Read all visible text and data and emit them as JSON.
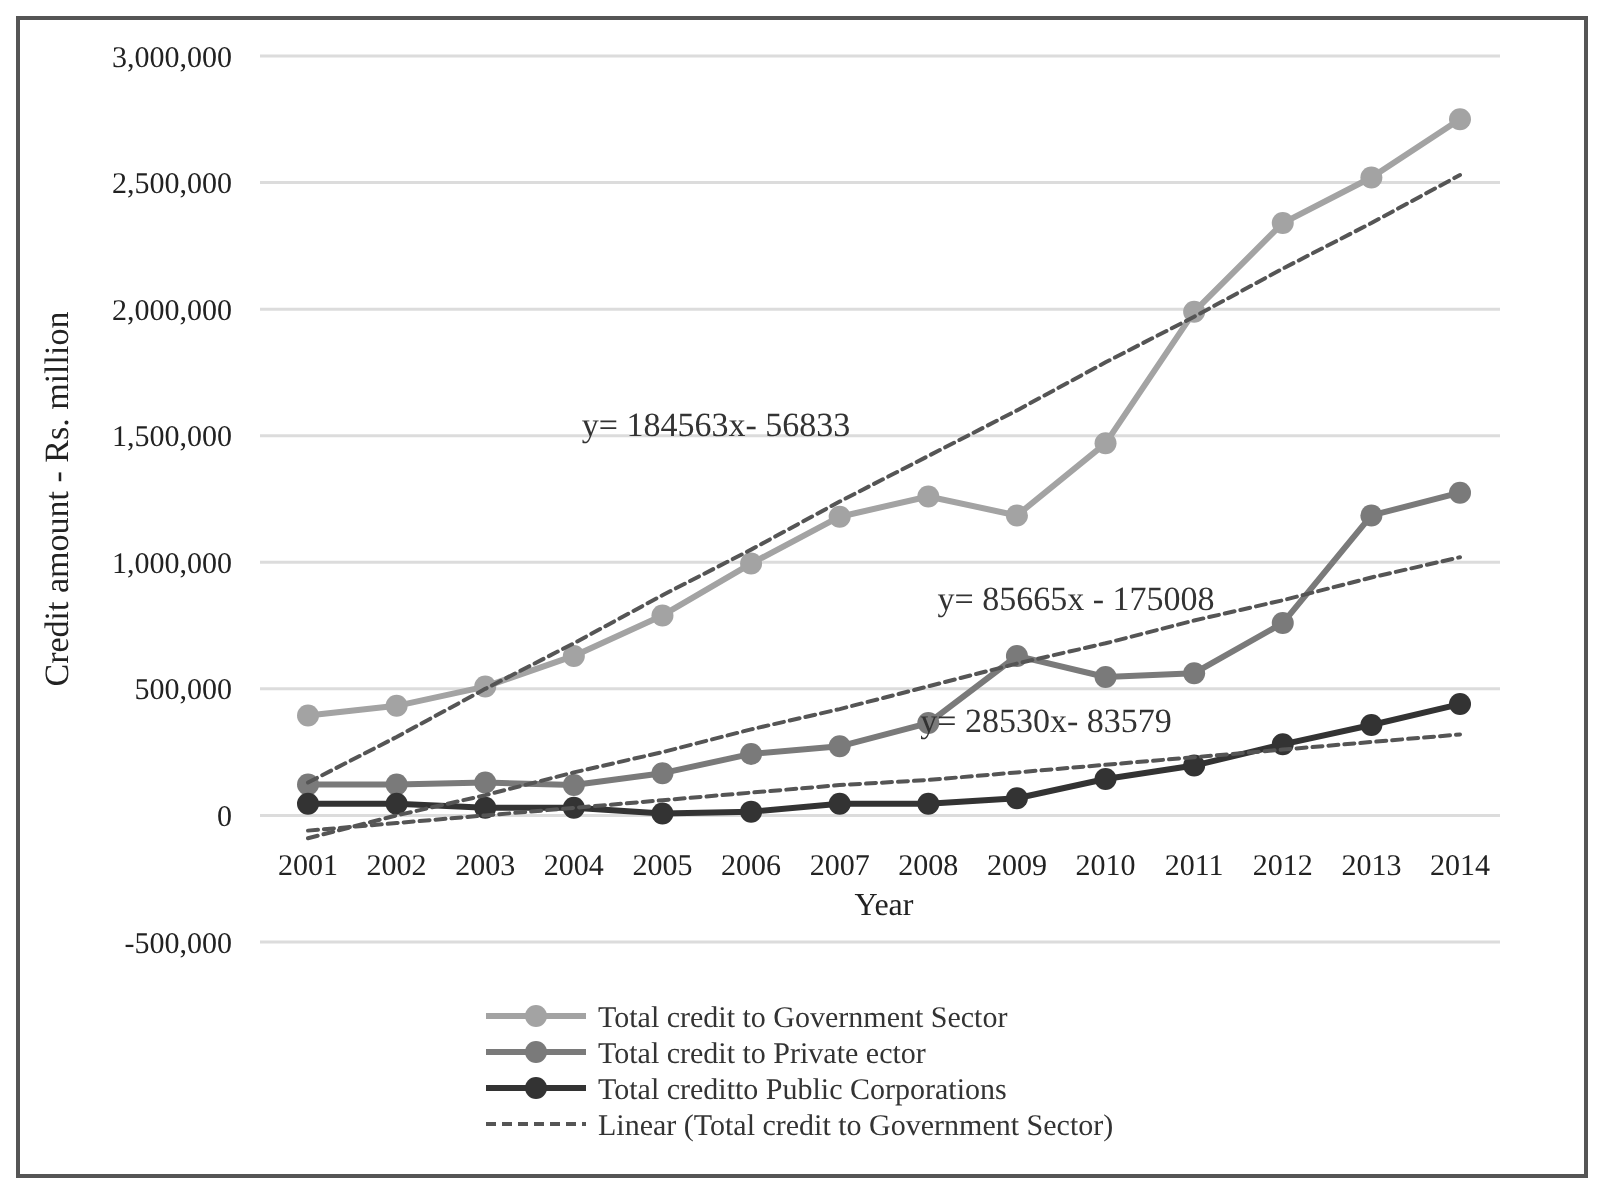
{
  "chart_data": {
    "type": "line",
    "xlabel": "Year",
    "ylabel": "Credit amount - Rs. million",
    "categories": [
      "2001",
      "2002",
      "2003",
      "2004",
      "2005",
      "2006",
      "2007",
      "2008",
      "2009",
      "2010",
      "2011",
      "2012",
      "2013",
      "2014"
    ],
    "series": [
      {
        "name": "Total credit to Government Sector",
        "color": "#a3a3a3",
        "values": [
          395000,
          433000,
          509000,
          630000,
          790000,
          995000,
          1180000,
          1260000,
          1185000,
          1470000,
          1990000,
          2340000,
          2520000,
          2750000
        ]
      },
      {
        "name": "Total credit to Private ector",
        "color": "#7a7a7a",
        "values": [
          122000,
          122000,
          130000,
          120000,
          167000,
          243000,
          273000,
          365000,
          630000,
          547000,
          562000,
          760000,
          1185000,
          1275000
        ]
      },
      {
        "name": "Total creditto Public Corporations",
        "color": "#333333",
        "values": [
          46000,
          46000,
          30000,
          30000,
          8000,
          15000,
          46000,
          46000,
          68000,
          144000,
          197000,
          281000,
          357000,
          440000
        ]
      },
      {
        "name": "Linear (Total credit to Government Sector)",
        "type": "line",
        "color": "#555555",
        "line_style": "dashed",
        "marker": "none",
        "values": [
          130000,
          310000,
          500000,
          680000,
          870000,
          1050000,
          1240000,
          1420000,
          1600000,
          1790000,
          1970000,
          2160000,
          2340000,
          2530000
        ]
      },
      {
        "type": "line",
        "color": "#555555",
        "line_style": "dashed",
        "marker": "none",
        "values": [
          -90000,
          0,
          80000,
          170000,
          250000,
          340000,
          420000,
          510000,
          600000,
          680000,
          770000,
          850000,
          940000,
          1020000
        ]
      },
      {
        "type": "line",
        "color": "#555555",
        "line_style": "dashed",
        "marker": "none",
        "values": [
          -60000,
          -30000,
          0,
          30000,
          60000,
          90000,
          120000,
          140000,
          170000,
          200000,
          230000,
          260000,
          290000,
          320000
        ]
      }
    ],
    "ylim": [
      -500000,
      3000000
    ],
    "yticks": [
      {
        "value": -500000,
        "label": "-500,000"
      },
      0,
      {
        "value": 500000,
        "label": "500,000"
      },
      {
        "value": 1000000,
        "label": "1,000,000"
      },
      {
        "value": 1500000,
        "label": "1,500,000"
      },
      {
        "value": 2000000,
        "label": "2,000,000"
      },
      {
        "value": 2500000,
        "label": "2,500,000"
      },
      {
        "value": 3000000,
        "label": "3,000,000"
      }
    ],
    "grid": "y",
    "legend": "bottom",
    "marker": "circle",
    "line_style": "solid",
    "annotations": [
      "y= 184563x- 56833",
      "y= 85665x - 175008",
      "y= 28530x- 83579"
    ]
  }
}
